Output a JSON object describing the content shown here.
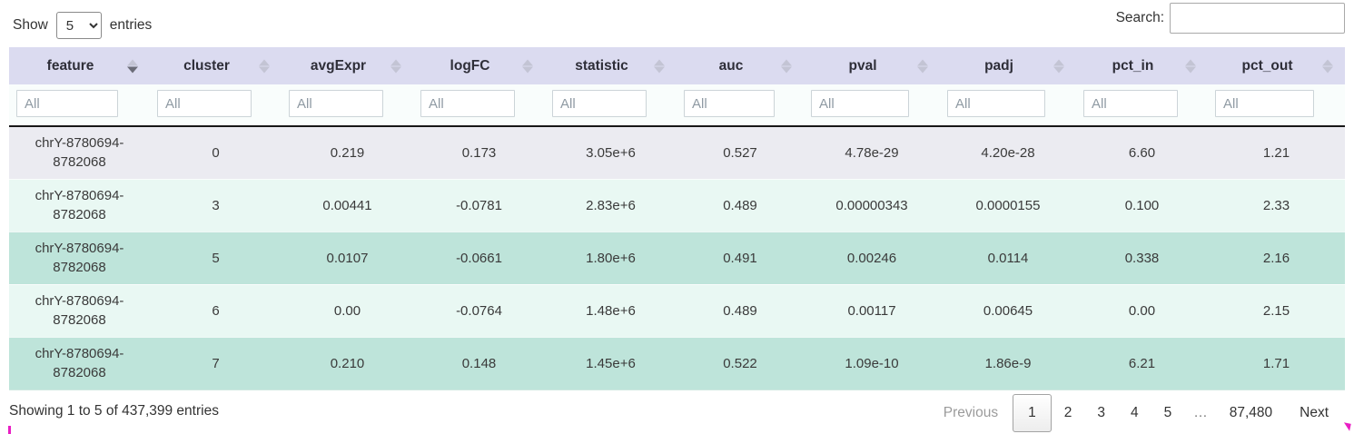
{
  "length_control": {
    "label_before": "Show",
    "label_after": "entries",
    "selected_value": "5",
    "options": [
      "5"
    ]
  },
  "search": {
    "label": "Search:",
    "value": ""
  },
  "table": {
    "filter_placeholder": "All",
    "columns": [
      {
        "label": "feature",
        "sort": "desc"
      },
      {
        "label": "cluster",
        "sort": "none"
      },
      {
        "label": "avgExpr",
        "sort": "none"
      },
      {
        "label": "logFC",
        "sort": "none"
      },
      {
        "label": "statistic",
        "sort": "none"
      },
      {
        "label": "auc",
        "sort": "none"
      },
      {
        "label": "pval",
        "sort": "none"
      },
      {
        "label": "padj",
        "sort": "none"
      },
      {
        "label": "pct_in",
        "sort": "none"
      },
      {
        "label": "pct_out",
        "sort": "none"
      }
    ],
    "rows": [
      {
        "variant": "gray",
        "cells": [
          "chrY-8780694-8782068",
          "0",
          "0.219",
          "0.173",
          "3.05e+6",
          "0.527",
          "4.78e-29",
          "4.20e-28",
          "6.60",
          "1.21"
        ]
      },
      {
        "variant": "mint",
        "cells": [
          "chrY-8780694-8782068",
          "3",
          "0.00441",
          "-0.0781",
          "2.83e+6",
          "0.489",
          "0.00000343",
          "0.0000155",
          "0.100",
          "2.33"
        ]
      },
      {
        "variant": "teal",
        "cells": [
          "chrY-8780694-8782068",
          "5",
          "0.0107",
          "-0.0661",
          "1.80e+6",
          "0.491",
          "0.00246",
          "0.0114",
          "0.338",
          "2.16"
        ]
      },
      {
        "variant": "mint",
        "cells": [
          "chrY-8780694-8782068",
          "6",
          "0.00",
          "-0.0764",
          "1.48e+6",
          "0.489",
          "0.00117",
          "0.00645",
          "0.00",
          "2.15"
        ]
      },
      {
        "variant": "teal",
        "cells": [
          "chrY-8780694-8782068",
          "7",
          "0.210",
          "0.148",
          "1.45e+6",
          "0.522",
          "1.09e-10",
          "1.86e-9",
          "6.21",
          "1.71"
        ]
      }
    ]
  },
  "footer": {
    "info": "Showing 1 to 5 of 437,399 entries",
    "pagination": {
      "previous_label": "Previous",
      "next_label": "Next",
      "pages": [
        "1",
        "2",
        "3",
        "4",
        "5",
        "…",
        "87,480"
      ],
      "current_page": "1"
    }
  },
  "colors": {
    "header_bg": "#dbdbf0",
    "row_gray": "#ebebf1",
    "row_mint": "#e9f8f3",
    "row_teal": "#bee4da",
    "filter_bg": "#f9fdfc",
    "artifact": "#e91ec4"
  }
}
